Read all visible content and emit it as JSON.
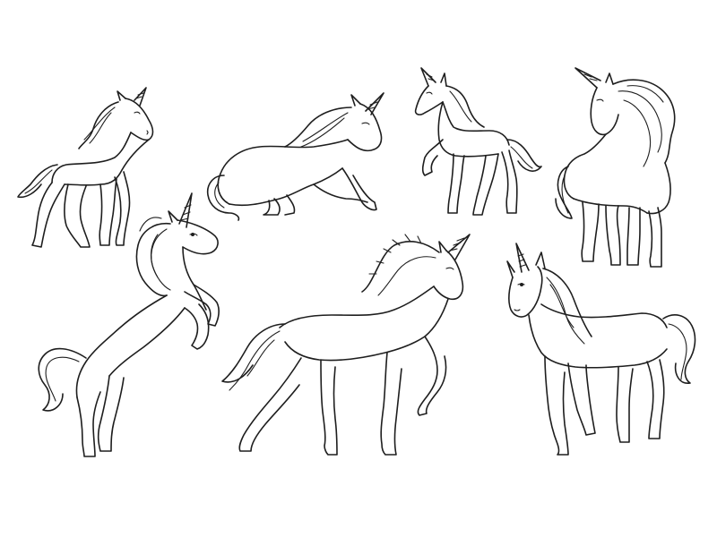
{
  "image": {
    "background_color": "#ffffff",
    "line_color": "#1e1e1e",
    "style": "black outline coloring-page line art",
    "subject": "unicorn",
    "figure_count": 7
  },
  "figures": [
    {
      "pose": "standing-small-foal",
      "facing": "right"
    },
    {
      "pose": "lying-down-resting",
      "facing": "right"
    },
    {
      "pose": "prancing-foreleg-raised",
      "facing": "left"
    },
    {
      "pose": "standing-head-turned-flowing-mane",
      "facing": "right"
    },
    {
      "pose": "rearing-up",
      "facing": "right"
    },
    {
      "pose": "walking-foreleg-raised",
      "facing": "right"
    },
    {
      "pose": "standing-front-view",
      "facing": "left"
    }
  ]
}
